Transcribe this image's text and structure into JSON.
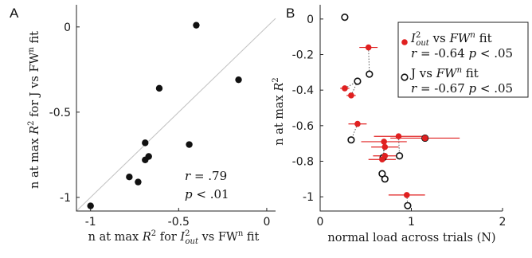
{
  "panel_a_letter": "A",
  "panel_b_letter": "B",
  "chart_data": [
    {
      "type": "scatter",
      "xlabel": "n at max R² for I²out vs FWⁿ fit",
      "ylabel": "n at max R² for J vs FWⁿ fit",
      "xlim": [
        -1.08,
        0.05
      ],
      "ylim": [
        -1.08,
        0.13
      ],
      "xticks": [
        -1,
        -0.5,
        0
      ],
      "yticks": [
        0,
        -0.5,
        -1
      ],
      "xtick_labels": [
        "-1",
        "-0.5",
        "0"
      ],
      "ytick_labels": [
        "0",
        "-0.5",
        "-1"
      ],
      "identity_line": true,
      "points": [
        {
          "x": -0.4,
          "y": 0.01
        },
        {
          "x": -0.16,
          "y": -0.31
        },
        {
          "x": -0.61,
          "y": -0.36
        },
        {
          "x": -0.69,
          "y": -0.68
        },
        {
          "x": -0.44,
          "y": -0.69
        },
        {
          "x": -0.67,
          "y": -0.76
        },
        {
          "x": -0.69,
          "y": -0.78
        },
        {
          "x": -0.78,
          "y": -0.88
        },
        {
          "x": -0.73,
          "y": -0.91
        },
        {
          "x": -1.0,
          "y": -1.05
        }
      ],
      "annotation": {
        "r": "r = .79",
        "p": "p < .01"
      }
    },
    {
      "type": "scatter",
      "xlabel": "normal load across trials (N)",
      "ylabel": "n at max R²",
      "xlim": [
        0,
        2
      ],
      "ylim": [
        -1.08,
        0.08
      ],
      "xticks": [
        0,
        1,
        2
      ],
      "yticks": [
        0,
        -0.2,
        -0.4,
        -0.6,
        -0.8,
        -1
      ],
      "xtick_labels": [
        "0",
        "1",
        "2"
      ],
      "ytick_labels": [
        "0",
        "-0.2",
        "-0.4",
        "-0.6",
        "-0.8",
        "-1"
      ],
      "series": [
        {
          "name": "I²out vs FWⁿ fit",
          "marker": "filled",
          "color": "#e02020",
          "points": [
            {
              "x": 0.53,
              "y": -0.16,
              "xerr": 0.1
            },
            {
              "x": 0.27,
              "y": -0.39,
              "xerr": 0.05
            },
            {
              "x": 0.34,
              "y": -0.43,
              "xerr": 0.05
            },
            {
              "x": 0.41,
              "y": -0.59,
              "xerr": 0.1
            },
            {
              "x": 0.86,
              "y": -0.66,
              "xerr": 0.27
            },
            {
              "x": 0.7,
              "y": -0.69,
              "xerr": 0.25
            },
            {
              "x": 0.71,
              "y": -0.72,
              "xerr": 0.15
            },
            {
              "x": 0.71,
              "y": -0.77,
              "xerr": 0.13
            },
            {
              "x": 0.68,
              "y": -0.79,
              "xerr": 0.15
            },
            {
              "x": 0.95,
              "y": -0.99,
              "xerr": 0.2
            },
            {
              "x": 1.15,
              "y": -0.67,
              "xerr": 0.38
            }
          ]
        },
        {
          "name": "J vs FWⁿ fit",
          "marker": "open",
          "color": "#111111",
          "points": [
            {
              "x": 0.27,
              "y": 0.01
            },
            {
              "x": 0.54,
              "y": -0.31
            },
            {
              "x": 0.41,
              "y": -0.35
            },
            {
              "x": 0.34,
              "y": -0.68
            },
            {
              "x": 1.15,
              "y": -0.67
            },
            {
              "x": 0.87,
              "y": -0.77
            },
            {
              "x": 0.69,
              "y": -0.78
            },
            {
              "x": 0.68,
              "y": -0.87
            },
            {
              "x": 0.71,
              "y": -0.9
            },
            {
              "x": 0.96,
              "y": -1.05
            }
          ]
        }
      ],
      "legend": {
        "position": "top-right",
        "entries": [
          {
            "label": "I²out vs FWⁿ fit",
            "stat": "r = -0.64  p < .05"
          },
          {
            "label": "J vs FWⁿ fit",
            "stat": "r = -0.67  p < .05"
          }
        ]
      }
    }
  ]
}
